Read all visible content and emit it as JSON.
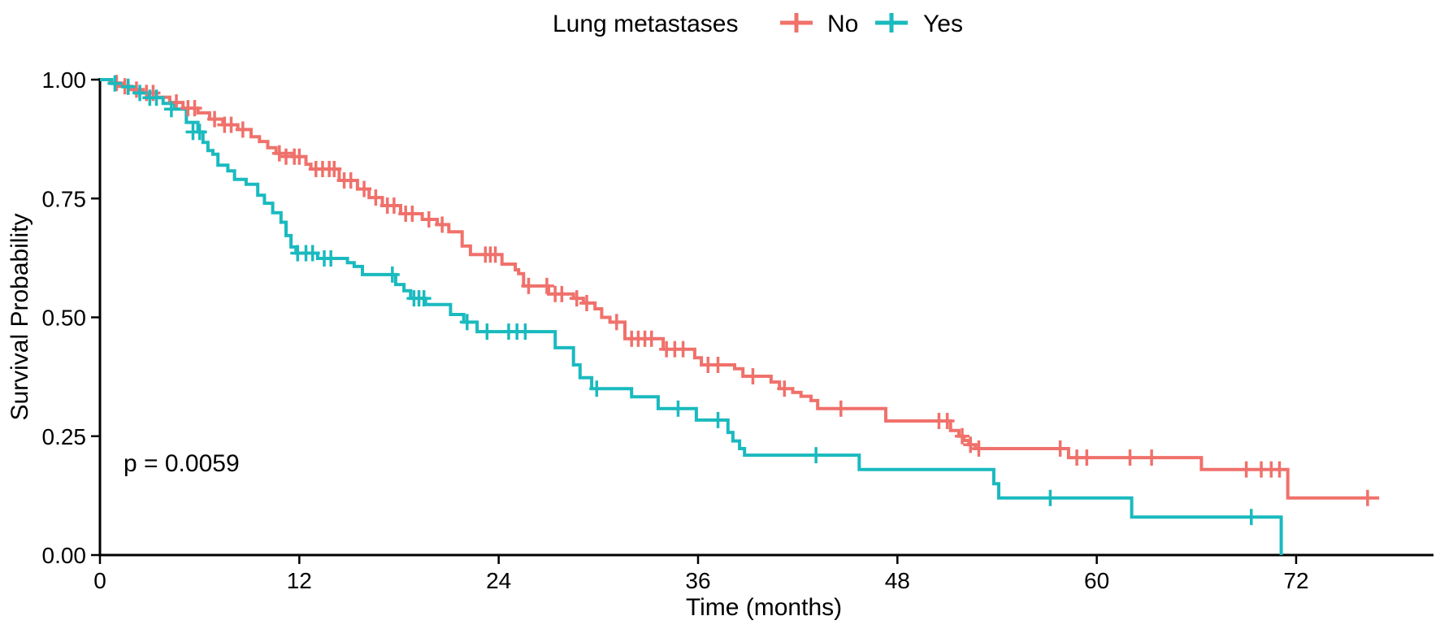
{
  "chart_data": {
    "type": "line",
    "subtype": "kaplan-meier-step",
    "legend_title": "Lung metastases",
    "legend_position": "top-center",
    "xlabel": "Time (months)",
    "ylabel": "Survival Probability",
    "p_value_label": "p = 0.0059",
    "xlim": [
      0,
      80
    ],
    "ylim": [
      0.0,
      1.0
    ],
    "x_ticks": [
      0,
      12,
      24,
      36,
      48,
      60,
      72
    ],
    "y_ticks": [
      "0.00",
      "0.25",
      "0.50",
      "0.75",
      "1.00"
    ],
    "grid": false,
    "background": "#ffffff",
    "axis_color": "#000000",
    "series": [
      {
        "name": "No",
        "color": "#F0716B",
        "end_t": 77.0,
        "steps": [
          [
            0,
            1.0
          ],
          [
            0.6,
            0.993
          ],
          [
            1.2,
            0.986
          ],
          [
            1.9,
            0.979
          ],
          [
            2.6,
            0.972
          ],
          [
            3.4,
            0.963
          ],
          [
            4.2,
            0.952
          ],
          [
            5.0,
            0.94
          ],
          [
            5.9,
            0.93
          ],
          [
            6.6,
            0.917
          ],
          [
            7.4,
            0.905
          ],
          [
            8.3,
            0.895
          ],
          [
            9.1,
            0.88
          ],
          [
            9.6,
            0.87
          ],
          [
            10.1,
            0.857
          ],
          [
            10.6,
            0.845
          ],
          [
            11.6,
            0.838
          ],
          [
            12.4,
            0.822
          ],
          [
            12.7,
            0.812
          ],
          [
            14.4,
            0.788
          ],
          [
            15.5,
            0.77
          ],
          [
            16.2,
            0.752
          ],
          [
            17.0,
            0.735
          ],
          [
            18.1,
            0.718
          ],
          [
            19.4,
            0.706
          ],
          [
            20.3,
            0.695
          ],
          [
            21.0,
            0.68
          ],
          [
            21.8,
            0.65
          ],
          [
            22.3,
            0.632
          ],
          [
            24.2,
            0.612
          ],
          [
            25.0,
            0.6
          ],
          [
            25.2,
            0.592
          ],
          [
            25.5,
            0.566
          ],
          [
            27.0,
            0.549
          ],
          [
            28.5,
            0.54
          ],
          [
            29.1,
            0.53
          ],
          [
            29.8,
            0.518
          ],
          [
            30.2,
            0.5
          ],
          [
            30.7,
            0.49
          ],
          [
            31.6,
            0.455
          ],
          [
            33.9,
            0.433
          ],
          [
            35.8,
            0.415
          ],
          [
            36.2,
            0.4
          ],
          [
            38.2,
            0.392
          ],
          [
            38.7,
            0.376
          ],
          [
            40.4,
            0.364
          ],
          [
            40.9,
            0.35
          ],
          [
            41.7,
            0.342
          ],
          [
            42.2,
            0.334
          ],
          [
            42.8,
            0.325
          ],
          [
            43.2,
            0.308
          ],
          [
            47.3,
            0.282
          ],
          [
            51.2,
            0.262
          ],
          [
            51.7,
            0.25
          ],
          [
            52.0,
            0.241
          ],
          [
            52.3,
            0.232
          ],
          [
            52.7,
            0.224
          ],
          [
            58.3,
            0.205
          ],
          [
            66.3,
            0.18
          ],
          [
            71.5,
            0.12
          ]
        ],
        "censors": [
          [
            1.0,
            0.993
          ],
          [
            1.5,
            0.986
          ],
          [
            2.2,
            0.979
          ],
          [
            2.8,
            0.972
          ],
          [
            3.2,
            0.972
          ],
          [
            4.6,
            0.952
          ],
          [
            5.3,
            0.94
          ],
          [
            5.7,
            0.94
          ],
          [
            6.9,
            0.917
          ],
          [
            7.5,
            0.905
          ],
          [
            7.9,
            0.905
          ],
          [
            8.6,
            0.895
          ],
          [
            10.8,
            0.845
          ],
          [
            11.2,
            0.838
          ],
          [
            11.7,
            0.838
          ],
          [
            12.0,
            0.838
          ],
          [
            13.0,
            0.812
          ],
          [
            13.4,
            0.812
          ],
          [
            13.8,
            0.812
          ],
          [
            14.1,
            0.812
          ],
          [
            14.7,
            0.788
          ],
          [
            15.1,
            0.788
          ],
          [
            15.9,
            0.77
          ],
          [
            16.6,
            0.752
          ],
          [
            17.3,
            0.735
          ],
          [
            17.7,
            0.735
          ],
          [
            18.4,
            0.718
          ],
          [
            18.8,
            0.718
          ],
          [
            19.8,
            0.706
          ],
          [
            20.6,
            0.695
          ],
          [
            23.2,
            0.632
          ],
          [
            23.5,
            0.632
          ],
          [
            23.8,
            0.632
          ],
          [
            25.8,
            0.566
          ],
          [
            26.9,
            0.566
          ],
          [
            27.4,
            0.549
          ],
          [
            27.8,
            0.549
          ],
          [
            28.7,
            0.54
          ],
          [
            29.3,
            0.53
          ],
          [
            31.1,
            0.49
          ],
          [
            32.0,
            0.455
          ],
          [
            32.4,
            0.455
          ],
          [
            32.8,
            0.455
          ],
          [
            33.2,
            0.455
          ],
          [
            34.1,
            0.433
          ],
          [
            34.6,
            0.433
          ],
          [
            35.1,
            0.433
          ],
          [
            36.6,
            0.4
          ],
          [
            37.2,
            0.4
          ],
          [
            39.3,
            0.376
          ],
          [
            41.2,
            0.35
          ],
          [
            44.6,
            0.308
          ],
          [
            50.5,
            0.282
          ],
          [
            51.0,
            0.282
          ],
          [
            51.9,
            0.25
          ],
          [
            52.4,
            0.232
          ],
          [
            52.9,
            0.224
          ],
          [
            57.8,
            0.224
          ],
          [
            58.8,
            0.205
          ],
          [
            59.4,
            0.205
          ],
          [
            62.0,
            0.205
          ],
          [
            63.3,
            0.205
          ],
          [
            69.0,
            0.18
          ],
          [
            69.9,
            0.18
          ],
          [
            70.5,
            0.18
          ],
          [
            71.0,
            0.18
          ],
          [
            76.3,
            0.12
          ]
        ]
      },
      {
        "name": "Yes",
        "color": "#1ABABF",
        "end_t": 71.1,
        "steps": [
          [
            0,
            1.0
          ],
          [
            0.7,
            0.992
          ],
          [
            1.4,
            0.985
          ],
          [
            2.1,
            0.972
          ],
          [
            2.9,
            0.962
          ],
          [
            3.8,
            0.95
          ],
          [
            4.5,
            0.938
          ],
          [
            5.2,
            0.91
          ],
          [
            5.9,
            0.89
          ],
          [
            6.2,
            0.868
          ],
          [
            6.5,
            0.851
          ],
          [
            6.8,
            0.843
          ],
          [
            7.1,
            0.82
          ],
          [
            7.7,
            0.808
          ],
          [
            8.1,
            0.79
          ],
          [
            8.8,
            0.78
          ],
          [
            9.5,
            0.757
          ],
          [
            9.9,
            0.74
          ],
          [
            10.4,
            0.72
          ],
          [
            10.9,
            0.7
          ],
          [
            11.2,
            0.672
          ],
          [
            11.5,
            0.648
          ],
          [
            11.8,
            0.635
          ],
          [
            13.1,
            0.624
          ],
          [
            14.9,
            0.615
          ],
          [
            15.3,
            0.607
          ],
          [
            15.8,
            0.59
          ],
          [
            17.8,
            0.569
          ],
          [
            18.3,
            0.556
          ],
          [
            18.7,
            0.54
          ],
          [
            19.6,
            0.527
          ],
          [
            21.1,
            0.506
          ],
          [
            21.9,
            0.49
          ],
          [
            22.7,
            0.47
          ],
          [
            27.4,
            0.436
          ],
          [
            28.5,
            0.4
          ],
          [
            28.9,
            0.373
          ],
          [
            29.6,
            0.35
          ],
          [
            32.0,
            0.333
          ],
          [
            33.6,
            0.308
          ],
          [
            35.9,
            0.284
          ],
          [
            37.8,
            0.258
          ],
          [
            38.1,
            0.24
          ],
          [
            38.5,
            0.224
          ],
          [
            38.8,
            0.21
          ],
          [
            45.7,
            0.18
          ],
          [
            53.8,
            0.15
          ],
          [
            54.1,
            0.12
          ],
          [
            62.1,
            0.08
          ],
          [
            71.1,
            0.0
          ]
        ],
        "censors": [
          [
            0.9,
            0.992
          ],
          [
            1.7,
            0.985
          ],
          [
            2.4,
            0.972
          ],
          [
            3.0,
            0.962
          ],
          [
            3.4,
            0.962
          ],
          [
            4.3,
            0.938
          ],
          [
            5.6,
            0.89
          ],
          [
            6.0,
            0.89
          ],
          [
            11.9,
            0.635
          ],
          [
            12.4,
            0.635
          ],
          [
            12.8,
            0.635
          ],
          [
            13.5,
            0.624
          ],
          [
            13.9,
            0.624
          ],
          [
            17.6,
            0.59
          ],
          [
            18.9,
            0.54
          ],
          [
            19.2,
            0.54
          ],
          [
            19.5,
            0.54
          ],
          [
            22.1,
            0.49
          ],
          [
            23.3,
            0.47
          ],
          [
            24.6,
            0.47
          ],
          [
            25.1,
            0.47
          ],
          [
            25.6,
            0.47
          ],
          [
            29.9,
            0.35
          ],
          [
            34.8,
            0.308
          ],
          [
            37.2,
            0.284
          ],
          [
            43.1,
            0.21
          ],
          [
            57.2,
            0.12
          ],
          [
            69.3,
            0.08
          ]
        ]
      }
    ]
  }
}
